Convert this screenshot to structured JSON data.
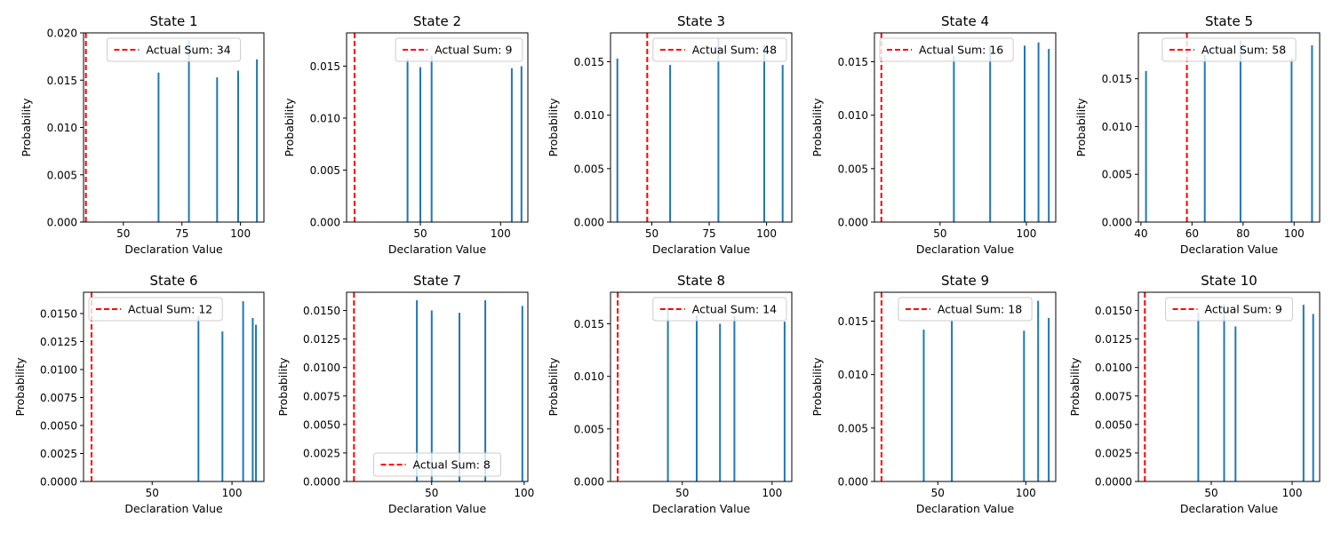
{
  "figure": {
    "bar_color": "#1f77b4",
    "line_color": "#ff0000",
    "x_label": "Declaration Value",
    "y_label": "Probability",
    "legend_prefix": "Actual Sum: "
  },
  "chart_data": [
    {
      "type": "bar",
      "title": "State 1",
      "xlabel": "Declaration Value",
      "ylabel": "Probability",
      "xlim": [
        33,
        110
      ],
      "ylim": [
        0,
        0.02
      ],
      "xticks": [
        50,
        75,
        100
      ],
      "xtick_labels": [
        "50",
        "75",
        "100"
      ],
      "yticks": [
        0,
        0.005,
        0.01,
        0.015,
        0.02
      ],
      "ytick_labels": [
        "0.000",
        "0.005",
        "0.010",
        "0.015",
        "0.020"
      ],
      "bars": [
        {
          "x": 65,
          "y": 0.0158
        },
        {
          "x": 78,
          "y": 0.0192
        },
        {
          "x": 90,
          "y": 0.0153
        },
        {
          "x": 99,
          "y": 0.016
        },
        {
          "x": 107,
          "y": 0.0172
        }
      ],
      "actual_sum": 34,
      "legend": "Actual Sum: 34",
      "legend_loc": "upper center"
    },
    {
      "type": "bar",
      "title": "State 2",
      "xlabel": "Declaration Value",
      "ylabel": "Probability",
      "xlim": [
        4,
        117
      ],
      "ylim": [
        0,
        0.0182
      ],
      "xticks": [
        50,
        100
      ],
      "xtick_labels": [
        "50",
        "100"
      ],
      "yticks": [
        0,
        0.005,
        0.01,
        0.015
      ],
      "ytick_labels": [
        "0.000",
        "0.005",
        "0.010",
        "0.015"
      ],
      "bars": [
        {
          "x": 42,
          "y": 0.0157
        },
        {
          "x": 50,
          "y": 0.0149
        },
        {
          "x": 57,
          "y": 0.016
        },
        {
          "x": 107,
          "y": 0.0148
        },
        {
          "x": 113,
          "y": 0.015
        }
      ],
      "actual_sum": 9,
      "legend": "Actual Sum: 9",
      "legend_loc": "upper right"
    },
    {
      "type": "bar",
      "title": "State 3",
      "xlabel": "Declaration Value",
      "ylabel": "Probability",
      "xlim": [
        32,
        111
      ],
      "ylim": [
        0,
        0.0177
      ],
      "xticks": [
        50,
        75,
        100
      ],
      "xtick_labels": [
        "50",
        "75",
        "100"
      ],
      "yticks": [
        0,
        0.005,
        0.01,
        0.015
      ],
      "ytick_labels": [
        "0.000",
        "0.005",
        "0.010",
        "0.015"
      ],
      "bars": [
        {
          "x": 35,
          "y": 0.0153
        },
        {
          "x": 58,
          "y": 0.0147
        },
        {
          "x": 79,
          "y": 0.0172
        },
        {
          "x": 99,
          "y": 0.0166
        },
        {
          "x": 107,
          "y": 0.0147
        }
      ],
      "actual_sum": 48,
      "legend": "Actual Sum: 48",
      "legend_loc": "upper right"
    },
    {
      "type": "bar",
      "title": "State 4",
      "xlabel": "Declaration Value",
      "ylabel": "Probability",
      "xlim": [
        12,
        117
      ],
      "ylim": [
        0,
        0.0177
      ],
      "xticks": [
        50,
        100
      ],
      "xtick_labels": [
        "50",
        "100"
      ],
      "yticks": [
        0,
        0.005,
        0.01,
        0.015
      ],
      "ytick_labels": [
        "0.000",
        "0.005",
        "0.010",
        "0.015"
      ],
      "bars": [
        {
          "x": 58,
          "y": 0.0155
        },
        {
          "x": 79,
          "y": 0.0165
        },
        {
          "x": 99,
          "y": 0.0165
        },
        {
          "x": 107,
          "y": 0.0168
        },
        {
          "x": 113,
          "y": 0.0162
        }
      ],
      "actual_sum": 16,
      "legend": "Actual Sum: 16",
      "legend_loc": "upper left"
    },
    {
      "type": "bar",
      "title": "State 5",
      "xlabel": "Declaration Value",
      "ylabel": "Probability",
      "xlim": [
        39,
        110
      ],
      "ylim": [
        0,
        0.0198
      ],
      "xticks": [
        40,
        60,
        80,
        100
      ],
      "xtick_labels": [
        "40",
        "60",
        "80",
        "100"
      ],
      "yticks": [
        0,
        0.005,
        0.01,
        0.015
      ],
      "ytick_labels": [
        "0.000",
        "0.005",
        "0.010",
        "0.015"
      ],
      "bars": [
        {
          "x": 42,
          "y": 0.0158
        },
        {
          "x": 65,
          "y": 0.0175
        },
        {
          "x": 79,
          "y": 0.019
        },
        {
          "x": 99,
          "y": 0.0171
        },
        {
          "x": 107,
          "y": 0.0185
        }
      ],
      "actual_sum": 58,
      "legend": "Actual Sum: 58",
      "legend_loc": "upper center"
    },
    {
      "type": "bar",
      "title": "State 6",
      "xlabel": "Declaration Value",
      "ylabel": "Probability",
      "xlim": [
        7,
        120
      ],
      "ylim": [
        0,
        0.0169
      ],
      "xticks": [
        50,
        100
      ],
      "xtick_labels": [
        "50",
        "100"
      ],
      "yticks": [
        0,
        0.0025,
        0.005,
        0.0075,
        0.01,
        0.0125,
        0.015
      ],
      "ytick_labels": [
        "0.0000",
        "0.0025",
        "0.0050",
        "0.0075",
        "0.0100",
        "0.0125",
        "0.0150"
      ],
      "bars": [
        {
          "x": 79,
          "y": 0.0148
        },
        {
          "x": 94,
          "y": 0.0134
        },
        {
          "x": 107,
          "y": 0.0161
        },
        {
          "x": 113,
          "y": 0.0146
        },
        {
          "x": 115,
          "y": 0.014
        }
      ],
      "actual_sum": 12,
      "legend": "Actual Sum: 12",
      "legend_loc": "upper left"
    },
    {
      "type": "bar",
      "title": "State 7",
      "xlabel": "Declaration Value",
      "ylabel": "Probability",
      "xlim": [
        4,
        102
      ],
      "ylim": [
        0,
        0.0166
      ],
      "xticks": [
        50,
        100
      ],
      "xtick_labels": [
        "50",
        "100"
      ],
      "yticks": [
        0,
        0.0025,
        0.005,
        0.0075,
        0.01,
        0.0125,
        0.015
      ],
      "ytick_labels": [
        "0.0000",
        "0.0025",
        "0.0050",
        "0.0075",
        "0.0100",
        "0.0125",
        "0.0150"
      ],
      "bars": [
        {
          "x": 42,
          "y": 0.0159
        },
        {
          "x": 50,
          "y": 0.015
        },
        {
          "x": 65,
          "y": 0.0148
        },
        {
          "x": 79,
          "y": 0.0159
        },
        {
          "x": 99,
          "y": 0.0154
        }
      ],
      "actual_sum": 8,
      "legend": "Actual Sum: 8",
      "legend_loc": "lower center"
    },
    {
      "type": "bar",
      "title": "State 8",
      "xlabel": "Declaration Value",
      "ylabel": "Probability",
      "xlim": [
        10,
        111
      ],
      "ylim": [
        0,
        0.018
      ],
      "xticks": [
        50,
        100
      ],
      "xtick_labels": [
        "50",
        "100"
      ],
      "yticks": [
        0,
        0.005,
        0.01,
        0.015
      ],
      "ytick_labels": [
        "0.000",
        "0.005",
        "0.010",
        "0.015"
      ],
      "bars": [
        {
          "x": 42,
          "y": 0.0166
        },
        {
          "x": 58,
          "y": 0.0158
        },
        {
          "x": 71,
          "y": 0.015
        },
        {
          "x": 79,
          "y": 0.0157
        },
        {
          "x": 107,
          "y": 0.0152
        }
      ],
      "actual_sum": 14,
      "legend": "Actual Sum: 14",
      "legend_loc": "upper right"
    },
    {
      "type": "bar",
      "title": "State 9",
      "xlabel": "Declaration Value",
      "ylabel": "Probability",
      "xlim": [
        14,
        117
      ],
      "ylim": [
        0,
        0.0177
      ],
      "xticks": [
        50,
        100
      ],
      "xtick_labels": [
        "50",
        "100"
      ],
      "yticks": [
        0,
        0.005,
        0.01,
        0.015
      ],
      "ytick_labels": [
        "0.000",
        "0.005",
        "0.010",
        "0.015"
      ],
      "bars": [
        {
          "x": 42,
          "y": 0.0142
        },
        {
          "x": 58,
          "y": 0.015
        },
        {
          "x": 99,
          "y": 0.0141
        },
        {
          "x": 107,
          "y": 0.0169
        },
        {
          "x": 113,
          "y": 0.0153
        }
      ],
      "actual_sum": 18,
      "legend": "Actual Sum: 18",
      "legend_loc": "upper center"
    },
    {
      "type": "bar",
      "title": "State 10",
      "xlabel": "Declaration Value",
      "ylabel": "Probability",
      "xlim": [
        5,
        117
      ],
      "ylim": [
        0,
        0.0166
      ],
      "xticks": [
        50,
        100
      ],
      "xtick_labels": [
        "50",
        "100"
      ],
      "yticks": [
        0,
        0.0025,
        0.005,
        0.0075,
        0.01,
        0.0125,
        0.015
      ],
      "ytick_labels": [
        "0.0000",
        "0.0025",
        "0.0050",
        "0.0075",
        "0.0100",
        "0.0125",
        "0.0150"
      ],
      "bars": [
        {
          "x": 42,
          "y": 0.0148
        },
        {
          "x": 58,
          "y": 0.0155
        },
        {
          "x": 65,
          "y": 0.0136
        },
        {
          "x": 107,
          "y": 0.0155
        },
        {
          "x": 113,
          "y": 0.0147
        }
      ],
      "actual_sum": 9,
      "legend": "Actual Sum: 9",
      "legend_loc": "upper center"
    }
  ]
}
